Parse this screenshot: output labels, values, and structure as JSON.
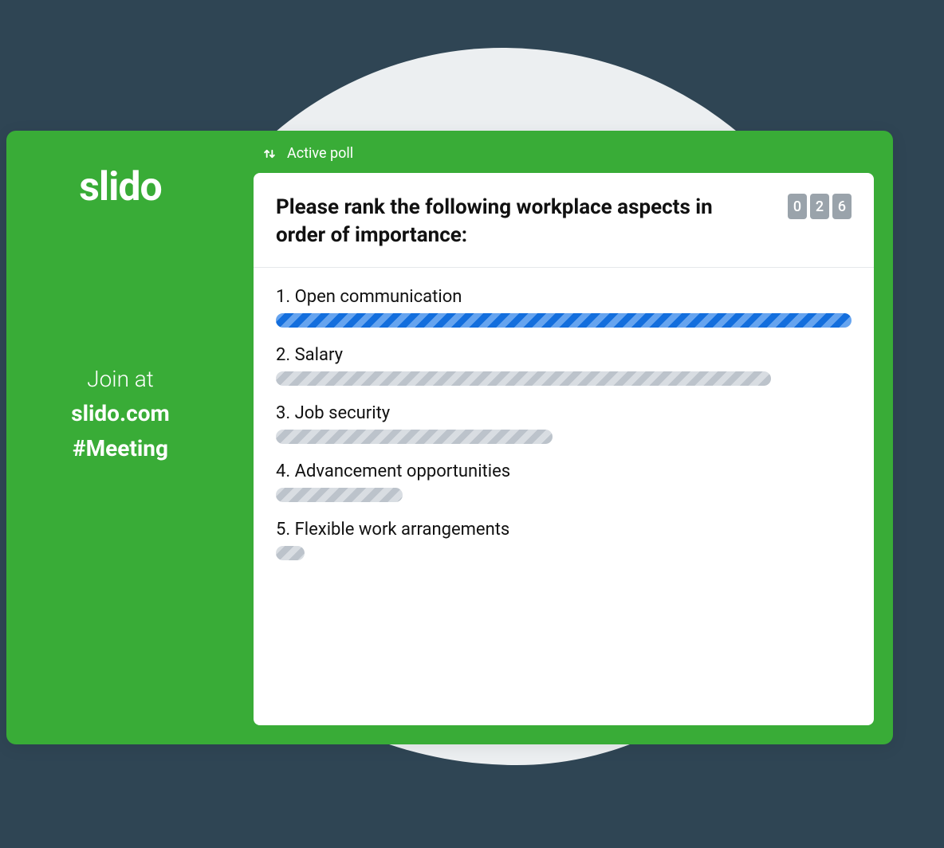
{
  "colors": {
    "page_bg": "#2f4554",
    "blob": "#eceff1",
    "card_bg": "#39ac37",
    "panel_bg": "#ffffff",
    "text_on_green": "#ffffff",
    "text_primary": "#111111",
    "divider": "#e6e8eb",
    "counter_bg": "#9aa3ab",
    "counter_fg": "#ffffff",
    "bar_primary": "#1473e6",
    "bar_secondary": "#c4cbd3"
  },
  "sidebar": {
    "logo": "slido",
    "join_label": "Join at",
    "join_url": "slido.com",
    "meeting_code": "#Meeting"
  },
  "header": {
    "status_label": "Active poll"
  },
  "poll": {
    "question": "Please rank the following workplace aspects in order of importance:",
    "counter_digits": [
      "0",
      "2",
      "6"
    ],
    "options": [
      {
        "rank": 1,
        "label": "Open communication",
        "bar_pct": 100,
        "color_key": "bar_primary"
      },
      {
        "rank": 2,
        "label": "Salary",
        "bar_pct": 86,
        "color_key": "bar_secondary"
      },
      {
        "rank": 3,
        "label": "Job security",
        "bar_pct": 48,
        "color_key": "bar_secondary"
      },
      {
        "rank": 4,
        "label": "Advancement opportunities",
        "bar_pct": 22,
        "color_key": "bar_secondary"
      },
      {
        "rank": 5,
        "label": "Flexible work arrangements",
        "bar_pct": 5,
        "color_key": "bar_secondary"
      }
    ]
  }
}
